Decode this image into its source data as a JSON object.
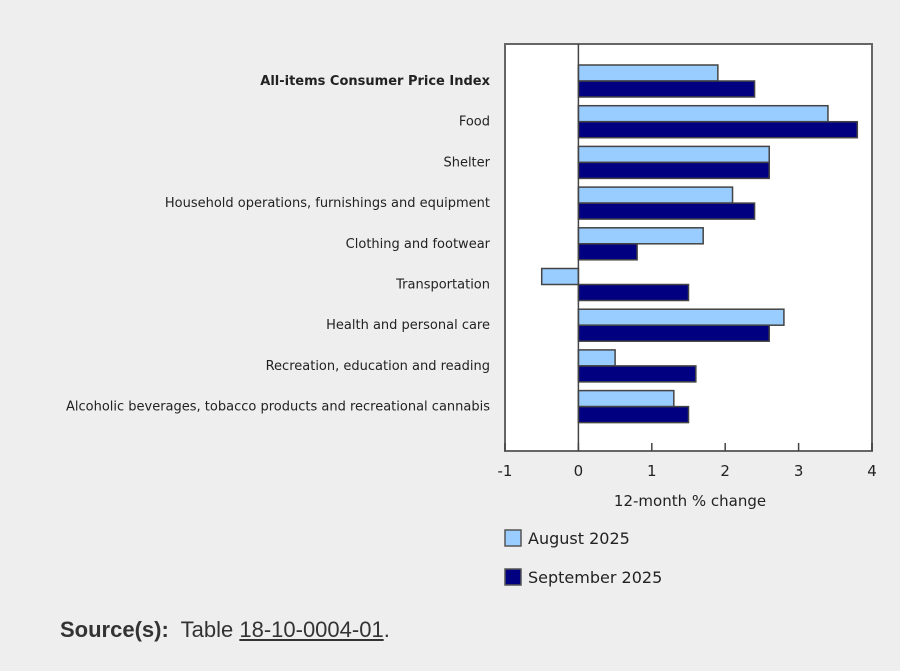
{
  "chart_data": {
    "type": "bar",
    "orientation": "horizontal",
    "title": "",
    "xlabel": "12-month % change",
    "ylabel": "",
    "xlim": [
      -1,
      4
    ],
    "xticks": [
      -1,
      0,
      1,
      2,
      3,
      4
    ],
    "grid": false,
    "legend_position": "bottom",
    "categories": [
      "All-items Consumer Price Index",
      "Food",
      "Shelter",
      "Household operations, furnishings and equipment",
      "Clothing and footwear",
      "Transportation",
      "Health and personal care",
      "Recreation, education and reading",
      "Alcoholic beverages, tobacco products and recreational cannabis"
    ],
    "bold_categories": [
      "All-items Consumer Price Index"
    ],
    "series": [
      {
        "name": "August 2025",
        "color": "#99ccff",
        "values": [
          1.9,
          3.4,
          2.6,
          2.1,
          1.7,
          -0.5,
          2.8,
          0.5,
          1.3
        ]
      },
      {
        "name": "September 2025",
        "color": "#000080",
        "values": [
          2.4,
          3.8,
          2.6,
          2.4,
          0.8,
          1.5,
          2.6,
          1.6,
          1.5
        ]
      }
    ]
  },
  "source": {
    "label": "Source(s):",
    "text": "Table",
    "link": "18-10-0004-01",
    "suffix": "."
  }
}
